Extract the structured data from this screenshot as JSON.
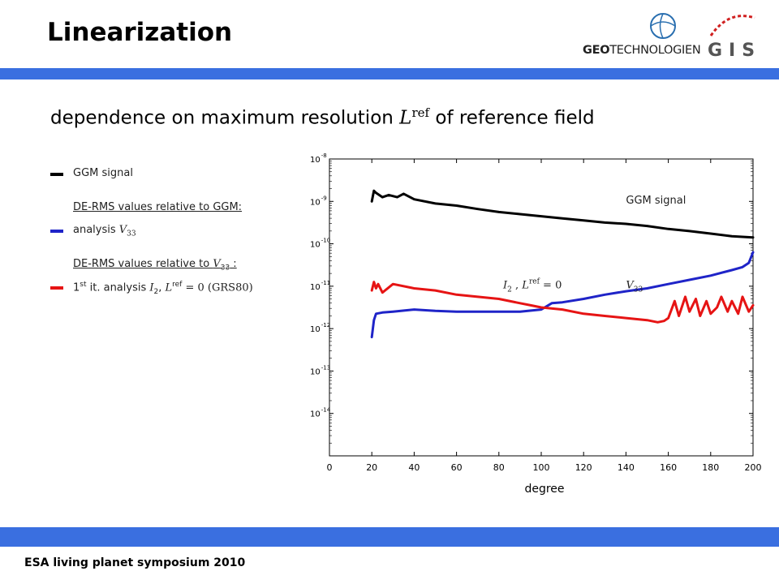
{
  "slide": {
    "title": "Linearization",
    "subtitle_prefix": "dependence on maximum resolution ",
    "subtitle_sym": "L",
    "subtitle_sup": "ref",
    "subtitle_suffix": " of reference field",
    "footer": "ESA living planet symposium 2010",
    "accent_color": "#3a6fe0"
  },
  "logos": {
    "geo_bold": "GEO",
    "geo_rest": "TECHNOLOGIEN",
    "gis": "GIS"
  },
  "legend": {
    "ggm_label": "GGM signal",
    "header1": "DE-RMS values relative to GGM:",
    "analysis_label": "analysis ",
    "analysis_sym": "V",
    "analysis_sub": "33",
    "header2_prefix": "DE-RMS values relative to ",
    "header2_sym": "V",
    "header2_sub": "33",
    "header2_suffix": " :",
    "first_prefix": "1",
    "first_sup": "st",
    "first_mid": " it. analysis ",
    "first_sym": "I",
    "first_sub": "2",
    "first_sep": ", ",
    "first_sym2": "L",
    "first_sup2": "ref",
    "first_tail": " = 0 (GRS80)"
  },
  "chart_data": {
    "type": "line",
    "xlabel": "degree",
    "ylabel": "",
    "y_scale": "log",
    "xlim": [
      0,
      200
    ],
    "ylim_exp": [
      -15,
      -8
    ],
    "x_ticks": [
      0,
      20,
      40,
      60,
      80,
      100,
      120,
      140,
      160,
      180,
      200
    ],
    "y_tick_exponents": [
      -8,
      -9,
      -10,
      -11,
      -12,
      -13,
      -14
    ],
    "series": [
      {
        "name": "GGM signal",
        "color": "#000000",
        "x": [
          20,
          21,
          22,
          25,
          28,
          32,
          35,
          40,
          50,
          60,
          70,
          80,
          90,
          100,
          110,
          120,
          130,
          140,
          150,
          160,
          170,
          180,
          190,
          200
        ],
        "log10_y": [
          -9.0,
          -8.75,
          -8.8,
          -8.9,
          -8.85,
          -8.9,
          -8.82,
          -8.95,
          -9.05,
          -9.1,
          -9.18,
          -9.25,
          -9.3,
          -9.35,
          -9.4,
          -9.45,
          -9.5,
          -9.53,
          -9.58,
          -9.65,
          -9.7,
          -9.76,
          -9.82,
          -9.85
        ]
      },
      {
        "name": "V33",
        "color": "#1f24c8",
        "x": [
          20,
          21,
          22,
          25,
          30,
          40,
          50,
          60,
          70,
          80,
          90,
          100,
          105,
          110,
          120,
          130,
          140,
          150,
          160,
          170,
          180,
          190,
          195,
          198,
          200
        ],
        "log10_y": [
          -12.2,
          -11.8,
          -11.65,
          -11.62,
          -11.6,
          -11.55,
          -11.58,
          -11.6,
          -11.6,
          -11.6,
          -11.6,
          -11.55,
          -11.4,
          -11.38,
          -11.3,
          -11.2,
          -11.12,
          -11.05,
          -10.95,
          -10.85,
          -10.75,
          -10.62,
          -10.55,
          -10.45,
          -10.2
        ]
      },
      {
        "name": "I2, Lref = 0",
        "color": "#e61414",
        "x": [
          20,
          21,
          22,
          23,
          25,
          30,
          40,
          50,
          60,
          70,
          80,
          90,
          95,
          100,
          110,
          120,
          130,
          140,
          150,
          155,
          158,
          160,
          163,
          165,
          168,
          170,
          173,
          175,
          178,
          180,
          183,
          185,
          188,
          190,
          193,
          195,
          198,
          200
        ],
        "log10_y": [
          -11.1,
          -10.9,
          -11.05,
          -10.95,
          -11.15,
          -10.95,
          -11.05,
          -11.1,
          -11.2,
          -11.25,
          -11.3,
          -11.4,
          -11.45,
          -11.5,
          -11.55,
          -11.65,
          -11.7,
          -11.75,
          -11.8,
          -11.85,
          -11.82,
          -11.75,
          -11.35,
          -11.7,
          -11.25,
          -11.6,
          -11.3,
          -11.7,
          -11.35,
          -11.65,
          -11.5,
          -11.25,
          -11.6,
          -11.35,
          -11.65,
          -11.25,
          -11.6,
          -11.45
        ]
      }
    ],
    "annotations": [
      {
        "text": "GGM signal",
        "x": 140,
        "exp": -9.05
      },
      {
        "text": "V33",
        "x": 140,
        "exp": -11.05
      },
      {
        "text": "I2 , Lref = 0",
        "x": 82,
        "exp": -11.05
      }
    ]
  }
}
